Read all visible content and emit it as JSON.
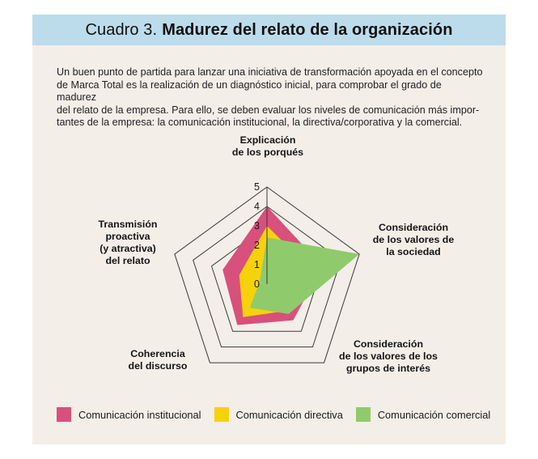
{
  "header": {
    "lead": "Cuadro 3.",
    "title": "Madurez del relato de la organización"
  },
  "intro_lines": [
    "Un buen punto de partida para lanzar una iniciativa de transformación apoyada en el concepto",
    "de Marca Total es la realización de un diagnóstico inicial, para comprobar el grado de madurez",
    "del relato de la empresa. Para ello, se deben evaluar los niveles de comunicación más impor-",
    "tantes de la empresa: la comunicación institucional, la directiva/corporativa y la comercial."
  ],
  "chart_data": {
    "type": "radar",
    "title": "",
    "axes": [
      "Explicación de los porqués",
      "Consideración de los valores de la sociedad",
      "Consideración de los valores de los grupos de interés",
      "Coherencia del discurso",
      "Transmisión proactiva (y atractiva) del relato"
    ],
    "axis_label_lines": [
      [
        "Explicación",
        "de los porqués"
      ],
      [
        "Consideración",
        "de los valores de",
        "la sociedad"
      ],
      [
        "Consideración",
        "de los valores de los",
        "grupos de interés"
      ],
      [
        "Coherencia",
        "del discurso"
      ],
      [
        "Transmisión",
        "proactiva",
        "(y atractiva)",
        "del relato"
      ]
    ],
    "range": [
      0,
      5
    ],
    "ticks": [
      "0",
      "1",
      "2",
      "3",
      "4",
      "5"
    ],
    "series": [
      {
        "name": "Comunicación institucional",
        "color": "#d8507c",
        "values": [
          4,
          3,
          2.3,
          2.6,
          2.4
        ]
      },
      {
        "name": "Comunicación directiva",
        "color": "#f6d20a",
        "values": [
          3,
          2.4,
          1.7,
          2.1,
          1.5
        ]
      },
      {
        "name": "Comunicación comercial",
        "color": "#8fcb6c",
        "values": [
          2.4,
          5,
          1.9,
          1.5,
          0.4
        ]
      }
    ],
    "legend_position": "bottom"
  }
}
